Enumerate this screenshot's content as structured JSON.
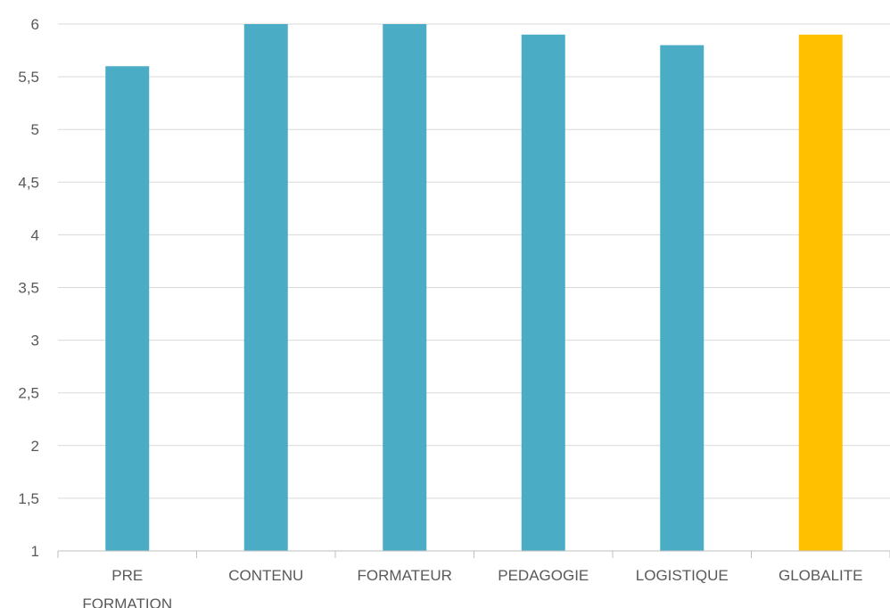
{
  "chart_data": {
    "type": "bar",
    "title": "",
    "xlabel": "",
    "ylabel": "",
    "categories": [
      [
        "PRE",
        "FORMATION"
      ],
      [
        "CONTENU"
      ],
      [
        "FORMATEUR"
      ],
      [
        "PEDAGOGIE"
      ],
      [
        "LOGISTIQUE"
      ],
      [
        "GLOBALITE"
      ]
    ],
    "values": [
      5.6,
      6.0,
      6.0,
      5.9,
      5.8,
      5.9
    ],
    "colors": [
      "#4bacc6",
      "#4bacc6",
      "#4bacc6",
      "#4bacc6",
      "#4bacc6",
      "#ffc000"
    ],
    "ylim": [
      1,
      6
    ],
    "yticks": [
      "1",
      "1,5",
      "2",
      "2,5",
      "3",
      "3,5",
      "4",
      "4,5",
      "5",
      "5,5",
      "6"
    ],
    "ytick_values": [
      1,
      1.5,
      2,
      2.5,
      3,
      3.5,
      4,
      4.5,
      5,
      5.5,
      6
    ],
    "grid": true,
    "legend": "none"
  }
}
